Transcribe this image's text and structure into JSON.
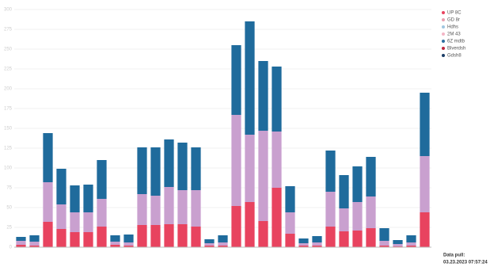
{
  "chart_data": {
    "type": "bar",
    "stacked": true,
    "categories": [
      null,
      null,
      null,
      null,
      null,
      null,
      null,
      null,
      null,
      null,
      null,
      null,
      null,
      null,
      null,
      null,
      null,
      null,
      null,
      null,
      null,
      null,
      null,
      null,
      null,
      null,
      null,
      null,
      null,
      null,
      null
    ],
    "series": [
      {
        "color": "#e8435f",
        "values": [
          3,
          2,
          32,
          23,
          19,
          19,
          26,
          3,
          2,
          28,
          28,
          29,
          29,
          26,
          2,
          2,
          52,
          57,
          33,
          75,
          17,
          2,
          2,
          26,
          20,
          21,
          24,
          2,
          1,
          2,
          44
        ]
      },
      {
        "color": "#c9a0cf",
        "values": [
          5,
          5,
          50,
          31,
          25,
          25,
          35,
          4,
          4,
          39,
          37,
          47,
          43,
          46,
          3,
          4,
          115,
          85,
          114,
          71,
          27,
          3,
          4,
          44,
          29,
          36,
          40,
          6,
          3,
          4,
          71
        ]
      },
      {
        "color": "#1f6b9c",
        "values": [
          5,
          8,
          62,
          45,
          34,
          35,
          49,
          8,
          10,
          59,
          61,
          60,
          60,
          54,
          5,
          9,
          88,
          143,
          88,
          82,
          33,
          6,
          8,
          52,
          42,
          45,
          50,
          16,
          5,
          9,
          80
        ]
      }
    ],
    "legend": [
      {
        "name": "UP 8C",
        "color": "#e8435f"
      },
      {
        "name": "GD 8r",
        "color": "#e8a0b0"
      },
      {
        "name": "Hdhs",
        "color": "#9fc6e0"
      },
      {
        "name": "2M 43",
        "color": "#f3b6c6"
      },
      {
        "name": "6Z mdtb",
        "color": "#2d6fa0"
      },
      {
        "name": "Blverdsh",
        "color": "#c0283e"
      },
      {
        "name": "Gdsh8",
        "color": "#1b3d66"
      }
    ],
    "ylim": [
      0,
      300
    ],
    "yticks": [
      0,
      25,
      50,
      75,
      100,
      125,
      150,
      175,
      200,
      225,
      250,
      275,
      300
    ],
    "grid": true,
    "annotations": [
      "Data pull:",
      "03.23.2023 07:57:24"
    ]
  }
}
